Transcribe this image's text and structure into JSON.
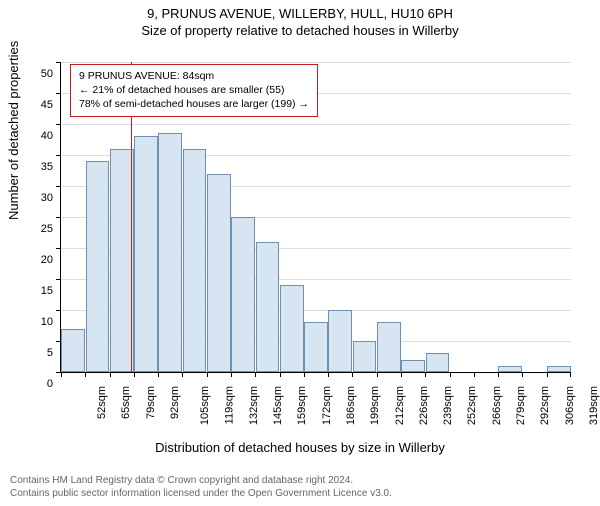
{
  "titles": {
    "line1": "9, PRUNUS AVENUE, WILLERBY, HULL, HU10 6PH",
    "line2": "Size of property relative to detached houses in Willerby"
  },
  "ylabel": "Number of detached properties",
  "xlabel": "Distribution of detached houses by size in Willerby",
  "chart": {
    "type": "histogram",
    "ylim": [
      0,
      50
    ],
    "ytick_step": 5,
    "bar_fill": "#d7e4f2",
    "bar_border": "#7090b0",
    "grid_color": "#dddddd",
    "background_color": "#ffffff",
    "marker_line_color": "#c02020",
    "marker_x_value": 84,
    "categories": [
      "52sqm",
      "65sqm",
      "79sqm",
      "92sqm",
      "105sqm",
      "119sqm",
      "132sqm",
      "145sqm",
      "159sqm",
      "172sqm",
      "186sqm",
      "199sqm",
      "212sqm",
      "226sqm",
      "239sqm",
      "252sqm",
      "266sqm",
      "279sqm",
      "292sqm",
      "306sqm",
      "319sqm"
    ],
    "x_numeric": [
      52,
      65,
      79,
      92,
      105,
      119,
      132,
      145,
      159,
      172,
      186,
      199,
      212,
      226,
      239,
      252,
      266,
      279,
      292,
      306,
      319
    ],
    "values": [
      7,
      34,
      36,
      38,
      38.5,
      36,
      32,
      25,
      21,
      14,
      8,
      10,
      5,
      8,
      2,
      3,
      0,
      0,
      1,
      0,
      1
    ]
  },
  "legend": {
    "line1": "9 PRUNUS AVENUE: 84sqm",
    "line2": "← 21% of detached houses are smaller (55)",
    "line3": "78% of semi-detached houses are larger (199) →"
  },
  "footer": {
    "line1": "Contains HM Land Registry data © Crown copyright and database right 2024.",
    "line2": "Contains public sector information licensed under the Open Government Licence v3.0."
  }
}
